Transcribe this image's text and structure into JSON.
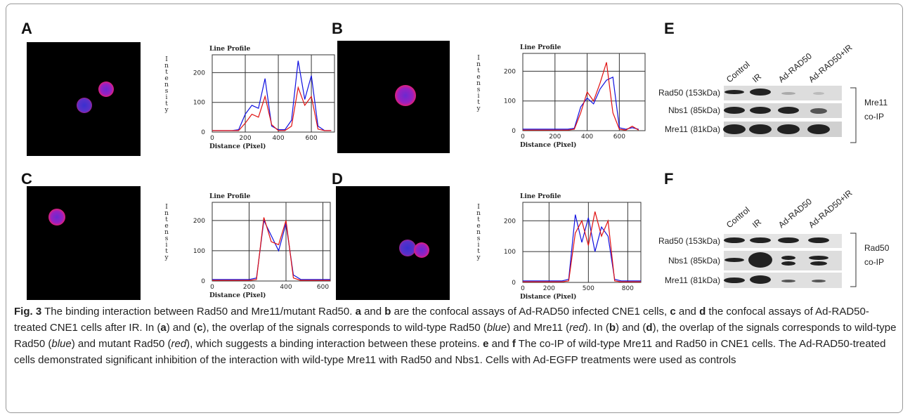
{
  "panel_labels": [
    "A",
    "B",
    "C",
    "D",
    "E",
    "F"
  ],
  "chart_data": [
    {
      "type": "line",
      "title": "Line Profile",
      "x_label": "Distance (Pixel)",
      "y_label": "Intensity",
      "x": [
        0,
        40,
        80,
        120,
        160,
        200,
        240,
        280,
        320,
        360,
        400,
        440,
        480,
        520,
        560,
        600,
        640,
        680,
        720
      ],
      "xlim": [
        0,
        740
      ],
      "xticks": [
        0,
        200,
        400,
        600
      ],
      "ylim": [
        0,
        260
      ],
      "yticks": [
        0,
        100,
        200
      ],
      "grid": true,
      "series": [
        {
          "color": "#1010e0",
          "values": [
            5,
            5,
            5,
            5,
            8,
            60,
            90,
            80,
            180,
            20,
            8,
            8,
            40,
            240,
            110,
            190,
            20,
            5,
            5
          ]
        },
        {
          "color": "#e01010",
          "values": [
            5,
            5,
            5,
            5,
            5,
            30,
            60,
            50,
            120,
            25,
            5,
            5,
            20,
            150,
            90,
            120,
            10,
            5,
            5
          ]
        }
      ]
    },
    {
      "type": "line",
      "title": "Line Profile",
      "x_label": "Distance (Pixel)",
      "y_label": "Intensity",
      "x": [
        0,
        40,
        80,
        120,
        160,
        200,
        240,
        280,
        320,
        360,
        400,
        440,
        480,
        520,
        560,
        600,
        640,
        680,
        720
      ],
      "xlim": [
        0,
        760
      ],
      "xticks": [
        0,
        200,
        400,
        600
      ],
      "ylim": [
        0,
        260
      ],
      "yticks": [
        0,
        100,
        200
      ],
      "grid": true,
      "series": [
        {
          "color": "#1010e0",
          "values": [
            5,
            5,
            5,
            5,
            5,
            5,
            5,
            5,
            8,
            80,
            110,
            90,
            140,
            170,
            180,
            10,
            5,
            10,
            5
          ]
        },
        {
          "color": "#e01010",
          "values": [
            2,
            2,
            2,
            2,
            2,
            2,
            2,
            2,
            5,
            60,
            130,
            100,
            160,
            230,
            60,
            5,
            2,
            15,
            2
          ]
        }
      ]
    },
    {
      "type": "line",
      "title": "Line Profile",
      "x_label": "Distance (Pixel)",
      "y_label": "Intensity",
      "x": [
        0,
        40,
        80,
        120,
        160,
        200,
        240,
        280,
        320,
        360,
        400,
        440,
        480,
        520,
        560,
        600,
        640
      ],
      "xlim": [
        0,
        640
      ],
      "xticks": [
        0,
        200,
        400,
        600
      ],
      "ylim": [
        0,
        260
      ],
      "yticks": [
        0,
        100,
        200
      ],
      "grid": true,
      "series": [
        {
          "color": "#1010e0",
          "values": [
            5,
            5,
            5,
            5,
            5,
            5,
            10,
            200,
            150,
            100,
            190,
            20,
            5,
            5,
            5,
            5,
            5
          ]
        },
        {
          "color": "#e01010",
          "values": [
            2,
            2,
            2,
            2,
            2,
            2,
            5,
            210,
            130,
            120,
            200,
            10,
            2,
            2,
            2,
            2,
            2
          ]
        }
      ]
    },
    {
      "type": "line",
      "title": "Line Profile",
      "x_label": "Distance (Pixel)",
      "y_label": "Intensity",
      "x": [
        0,
        50,
        100,
        150,
        200,
        250,
        300,
        350,
        400,
        450,
        500,
        550,
        600,
        650,
        700,
        750,
        800,
        850,
        900
      ],
      "xlim": [
        0,
        900
      ],
      "xticks": [
        0,
        200,
        500,
        800
      ],
      "ylim": [
        0,
        260
      ],
      "yticks": [
        0,
        100,
        200
      ],
      "grid": true,
      "series": [
        {
          "color": "#1010e0",
          "values": [
            5,
            5,
            5,
            5,
            5,
            5,
            5,
            10,
            220,
            130,
            210,
            100,
            180,
            150,
            10,
            5,
            5,
            5,
            5
          ]
        },
        {
          "color": "#e01010",
          "values": [
            2,
            2,
            2,
            2,
            2,
            2,
            2,
            5,
            160,
            200,
            120,
            230,
            150,
            200,
            5,
            2,
            2,
            2,
            2
          ]
        }
      ]
    }
  ],
  "blots": [
    {
      "lanes": [
        "Control",
        "IR",
        "Ad-RAD50",
        "Ad-RAD50+IR"
      ],
      "rows": [
        "Rad50 (153kDa)",
        "Nbs1 (85kDa)",
        "Mre11 (81kDa)"
      ],
      "group_label": [
        "Mre11",
        "co-IP"
      ]
    },
    {
      "lanes": [
        "Control",
        "IR",
        "Ad-RAD50",
        "Ad-RAD50+IR"
      ],
      "rows": [
        "Rad50 (153kDa)",
        "Nbs1 (85kDa)",
        "Mre11 (81kDa)"
      ],
      "group_label": [
        "Rad50",
        "co-IP"
      ]
    }
  ],
  "caption": [
    {
      "text": "Fig. 3",
      "style": "b"
    },
    {
      "text": " The binding interaction between Rad50 and Mre11/mutant Rad50. "
    },
    {
      "text": "a",
      "style": "b"
    },
    {
      "text": " and "
    },
    {
      "text": "b",
      "style": "b"
    },
    {
      "text": " are the confocal assays of Ad-RAD50 infected CNE1 cells, "
    },
    {
      "text": "c",
      "style": "b"
    },
    {
      "text": " and "
    },
    {
      "text": "d",
      "style": "b"
    },
    {
      "text": " the confocal assays of Ad-RAD50-treated CNE1 cells after IR. In ("
    },
    {
      "text": "a",
      "style": "b"
    },
    {
      "text": ") and ("
    },
    {
      "text": "c",
      "style": "b"
    },
    {
      "text": "), the overlap of the signals corresponds to wild-type Rad50 ("
    },
    {
      "text": "blue",
      "style": "i"
    },
    {
      "text": ") and Mre11 ("
    },
    {
      "text": "red",
      "style": "i"
    },
    {
      "text": "). In ("
    },
    {
      "text": "b",
      "style": "b"
    },
    {
      "text": ") and ("
    },
    {
      "text": "d",
      "style": "b"
    },
    {
      "text": "), the overlap of the signals corresponds to wild-type Rad50 ("
    },
    {
      "text": "blue",
      "style": "i"
    },
    {
      "text": ") and mutant Rad50 ("
    },
    {
      "text": "red",
      "style": "i"
    },
    {
      "text": "), which suggests a binding interaction between these proteins. "
    },
    {
      "text": "e",
      "style": "b"
    },
    {
      "text": " and "
    },
    {
      "text": "f",
      "style": "b"
    },
    {
      "text": " The co-IP of wild-type Mre11 and Rad50 in CNE1 cells. The Ad-RAD50-treated cells demonstrated significant inhibition of the interaction with wild-type Mre11 with Rad50 and Nbs1. Cells with Ad-EGFP treatments were used as controls"
    }
  ]
}
